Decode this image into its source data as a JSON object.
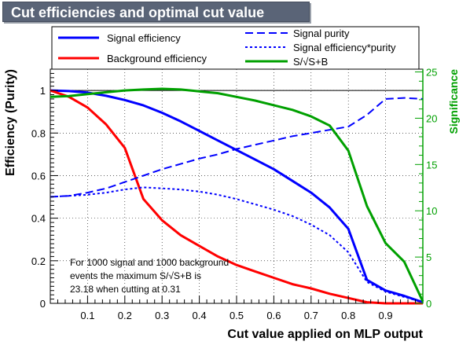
{
  "title": "Cut efficiencies and optimal cut value",
  "chart_data": {
    "type": "line",
    "xlabel": "Cut value applied on MLP output",
    "ylabel_left": "Efficiency (Purity)",
    "ylabel_right": "Significance",
    "xlim": [
      0,
      1
    ],
    "ylim_left": [
      0,
      1.1
    ],
    "ylim_right": [
      0,
      25.3
    ],
    "x_ticks": [
      "0.1",
      "0.2",
      "0.3",
      "0.4",
      "0.5",
      "0.6",
      "0.7",
      "0.8",
      "0.9"
    ],
    "y_ticks_left": [
      "0",
      "0.2",
      "0.4",
      "0.6",
      "0.8",
      "1"
    ],
    "y_ticks_right": [
      "0",
      "5",
      "10",
      "15",
      "20",
      "25"
    ],
    "grid": true,
    "legend_placement": "top",
    "colors": {
      "signal": "#0000ff",
      "background": "#ff0000",
      "significance": "#00a000",
      "right_axis": "#00a000"
    },
    "series": [
      {
        "name": "Signal efficiency",
        "axis": "left",
        "style": "solid",
        "color": "#0000ff",
        "x": [
          0,
          0.05,
          0.1,
          0.15,
          0.2,
          0.25,
          0.3,
          0.35,
          0.4,
          0.45,
          0.5,
          0.55,
          0.6,
          0.65,
          0.7,
          0.75,
          0.8,
          0.85,
          0.9,
          0.95,
          1.0
        ],
        "y": [
          1.0,
          0.997,
          0.99,
          0.975,
          0.955,
          0.93,
          0.895,
          0.855,
          0.81,
          0.765,
          0.72,
          0.675,
          0.63,
          0.575,
          0.52,
          0.45,
          0.35,
          0.11,
          0.06,
          0.035,
          0.005
        ]
      },
      {
        "name": "Background efficiency",
        "axis": "left",
        "style": "solid",
        "color": "#ff0000",
        "x": [
          0,
          0.05,
          0.1,
          0.15,
          0.2,
          0.25,
          0.3,
          0.35,
          0.4,
          0.45,
          0.5,
          0.55,
          0.6,
          0.65,
          0.7,
          0.75,
          0.8,
          0.85,
          0.9,
          0.95,
          1.0
        ],
        "y": [
          1.0,
          0.97,
          0.92,
          0.84,
          0.73,
          0.49,
          0.39,
          0.32,
          0.27,
          0.22,
          0.18,
          0.15,
          0.12,
          0.09,
          0.07,
          0.045,
          0.025,
          0.005,
          0.0,
          0.0,
          0.0
        ]
      },
      {
        "name": "Signal purity",
        "axis": "left",
        "style": "dashed",
        "color": "#0000ff",
        "x": [
          0,
          0.05,
          0.1,
          0.15,
          0.2,
          0.25,
          0.3,
          0.35,
          0.4,
          0.45,
          0.5,
          0.55,
          0.6,
          0.65,
          0.7,
          0.75,
          0.8,
          0.85,
          0.9,
          0.95,
          1.0
        ],
        "y": [
          0.5,
          0.505,
          0.52,
          0.54,
          0.57,
          0.6,
          0.63,
          0.655,
          0.68,
          0.7,
          0.725,
          0.745,
          0.765,
          0.785,
          0.8,
          0.815,
          0.83,
          0.885,
          0.96,
          0.965,
          0.96
        ]
      },
      {
        "name": "Signal efficiency*purity",
        "axis": "left",
        "style": "dotted",
        "color": "#0000ff",
        "x": [
          0,
          0.05,
          0.1,
          0.15,
          0.2,
          0.25,
          0.3,
          0.35,
          0.4,
          0.45,
          0.5,
          0.55,
          0.6,
          0.65,
          0.7,
          0.75,
          0.8,
          0.85,
          0.9,
          0.95,
          1.0
        ],
        "y": [
          0.5,
          0.505,
          0.51,
          0.52,
          0.535,
          0.545,
          0.54,
          0.535,
          0.525,
          0.51,
          0.49,
          0.465,
          0.44,
          0.41,
          0.37,
          0.32,
          0.24,
          0.1,
          0.055,
          0.03,
          0.005
        ]
      },
      {
        "name": "S/√S+B",
        "axis": "right",
        "style": "solid",
        "color": "#00a000",
        "x": [
          0,
          0.05,
          0.1,
          0.15,
          0.2,
          0.25,
          0.3,
          0.35,
          0.4,
          0.45,
          0.5,
          0.55,
          0.6,
          0.65,
          0.7,
          0.75,
          0.8,
          0.85,
          0.9,
          0.95,
          1.0
        ],
        "y": [
          22.3,
          22.4,
          22.6,
          22.8,
          23.0,
          23.1,
          23.18,
          23.1,
          22.9,
          22.7,
          22.3,
          21.9,
          21.4,
          20.9,
          20.2,
          19.2,
          16.5,
          10.5,
          6.5,
          4.5,
          0.2
        ]
      }
    ]
  },
  "legend": [
    {
      "label": "Signal efficiency",
      "style": "solid",
      "color": "#0000ff"
    },
    {
      "label": "Background efficiency",
      "style": "solid",
      "color": "#ff0000"
    },
    {
      "label": "Signal purity",
      "style": "dashed",
      "color": "#0000ff"
    },
    {
      "label": "Signal efficiency*purity",
      "style": "dotted",
      "color": "#0000ff"
    },
    {
      "label": "S/√S+B",
      "style": "solid",
      "color": "#00a000"
    }
  ],
  "annotation": {
    "line1": "For 1000 signal and 1000 background",
    "line2": "events the maximum S/√S+B is",
    "line3": "23.18 when cutting at  0.31"
  }
}
